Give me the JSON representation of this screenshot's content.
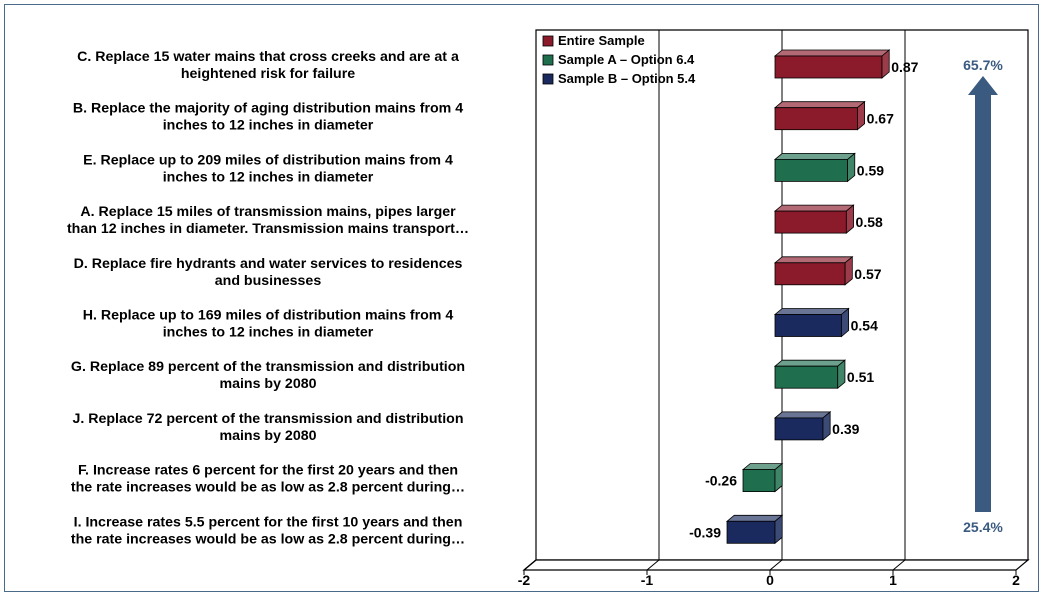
{
  "chart_data": {
    "type": "bar",
    "orientation": "horizontal",
    "style": "3d",
    "categories": [
      "C. Replace 15 water mains that cross creeks and are at a heightened risk for failure",
      "B. Replace the majority of aging distribution mains from 4 inches to 12 inches in diameter",
      "E. Replace up to 209 miles of distribution mains from 4 inches to 12 inches in diameter",
      "A. Replace 15 miles of transmission mains, pipes larger than 12 inches in diameter. Transmission mains transport…",
      "D. Replace fire hydrants and water services to residences and businesses",
      "H. Replace up to 169 miles of distribution mains from 4 inches to 12 inches in diameter",
      "G. Replace 89 percent of the transmission and distribution mains by 2080",
      "J. Replace 72 percent of the transmission and distribution mains by 2080",
      "F. Increase rates 6 percent for the first 20 years and then the rate increases would be as low as 2.8 percent during…",
      "I. Increase rates 5.5 percent for the first 10 years and then the rate increases would be as low as 2.8 percent during…"
    ],
    "category_lines": [
      [
        "C. Replace 15 water mains that cross creeks and are at a",
        "heightened risk for failure"
      ],
      [
        "B. Replace the majority of aging distribution mains from 4",
        "inches to 12 inches in diameter"
      ],
      [
        "E. Replace up to 209 miles of distribution mains from 4",
        "inches to 12 inches in diameter"
      ],
      [
        "A. Replace 15 miles of transmission mains, pipes larger",
        "than 12 inches in diameter. Transmission mains transport…"
      ],
      [
        "D. Replace fire hydrants and water services to residences",
        "and businesses"
      ],
      [
        "H. Replace up to 169 miles of distribution mains from 4",
        "inches to 12 inches in diameter"
      ],
      [
        "G. Replace 89 percent of the transmission and distribution",
        "mains by 2080"
      ],
      [
        "J. Replace 72 percent of the transmission and distribution",
        "mains by 2080"
      ],
      [
        "F. Increase rates 6 percent for the first 20 years and then",
        "the rate increases would be as low as 2.8 percent during…"
      ],
      [
        "I. Increase rates 5.5 percent for the first 10 years and then",
        "the rate increases would be as low as 2.8 percent during…"
      ]
    ],
    "values": [
      0.87,
      0.67,
      0.59,
      0.58,
      0.57,
      0.54,
      0.51,
      0.39,
      -0.26,
      -0.39
    ],
    "value_labels": [
      "0.87",
      "0.67",
      "0.59",
      "0.58",
      "0.57",
      "0.54",
      "0.51",
      "0.39",
      "-0.26",
      "-0.39"
    ],
    "bar_series": [
      0,
      0,
      1,
      0,
      0,
      2,
      1,
      2,
      1,
      2
    ],
    "series": [
      {
        "name": "Entire Sample",
        "color": "#8b1a2b"
      },
      {
        "name": "Sample A – Option 6.4",
        "color": "#1f6f4f"
      },
      {
        "name": "Sample B – Option 5.4",
        "color": "#1a2a5e"
      }
    ],
    "xlim": [
      -2,
      2
    ],
    "xticks": [
      "-2",
      "-1",
      "0",
      "1",
      "2"
    ],
    "xtick_values": [
      -2,
      -1,
      0,
      1,
      2
    ],
    "grid": true,
    "legend_position": "top-left of plot",
    "annotations": {
      "top_percent": "65.7%",
      "bottom_percent": "25.4%",
      "arrow": "up",
      "arrow_color": "#3a5a80",
      "text_color": "#3a5a80"
    }
  }
}
